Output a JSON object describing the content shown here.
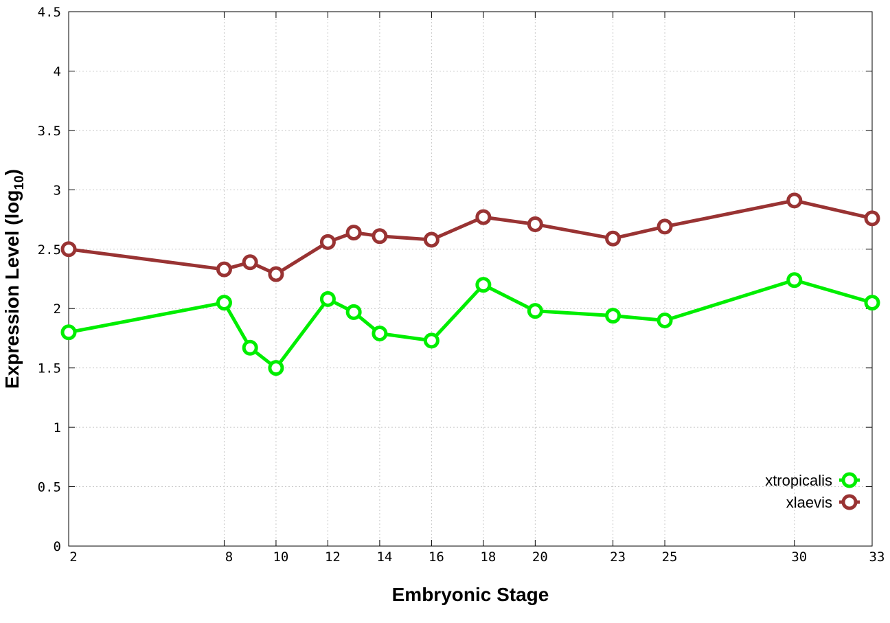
{
  "chart_data": {
    "type": "line",
    "title": "",
    "xlabel": "Embryonic Stage",
    "ylabel_main": "Expression Level (log",
    "ylabel_sub": "10",
    "ylabel_close": ")",
    "xlim": [
      2,
      33
    ],
    "ylim": [
      0,
      4.5
    ],
    "x_ticks": [
      2,
      8,
      10,
      12,
      14,
      16,
      18,
      20,
      23,
      25,
      30,
      33
    ],
    "x_tick_labels": [
      "2",
      "8",
      "10",
      "12",
      "14",
      "16",
      "18",
      "20",
      "23",
      "25",
      "30",
      "33"
    ],
    "y_ticks": [
      0,
      0.5,
      1,
      1.5,
      2,
      2.5,
      3,
      3.5,
      4,
      4.5
    ],
    "y_tick_labels": [
      "0",
      "0.5",
      "1",
      "1.5",
      "2",
      "2.5",
      "3",
      "3.5",
      "4",
      "4.5"
    ],
    "grid": true,
    "legend_position": "bottom-right",
    "x": [
      2,
      8,
      9,
      10,
      12,
      13,
      14,
      16,
      18,
      20,
      23,
      25,
      30,
      33
    ],
    "series": [
      {
        "name": "xtropicalis",
        "color": "#00ee00",
        "values": [
          1.8,
          2.05,
          1.67,
          1.5,
          2.08,
          1.97,
          1.79,
          1.73,
          2.2,
          1.98,
          1.94,
          1.9,
          2.24,
          2.05
        ]
      },
      {
        "name": "xlaevis",
        "color": "#993333",
        "values": [
          2.5,
          2.33,
          2.39,
          2.29,
          2.56,
          2.64,
          2.61,
          2.58,
          2.77,
          2.71,
          2.59,
          2.69,
          2.91,
          2.76
        ]
      }
    ]
  }
}
